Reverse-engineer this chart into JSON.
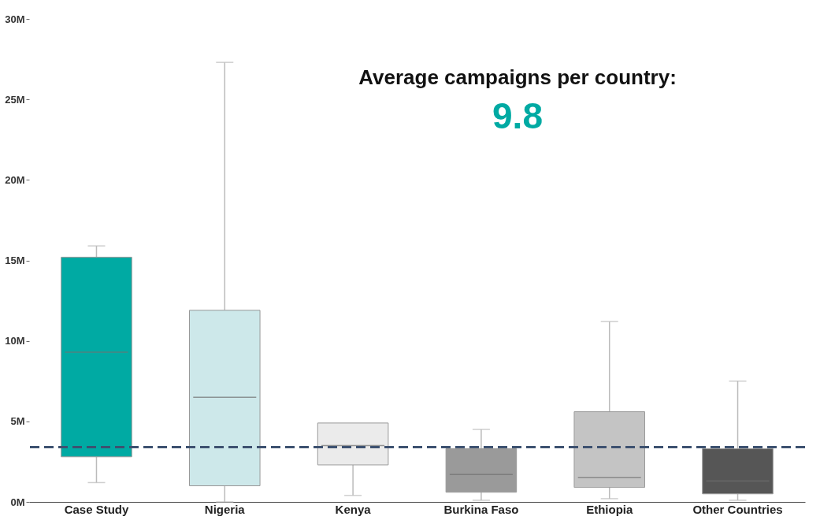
{
  "chart_data": {
    "type": "box",
    "categories": [
      "Case Study",
      "Nigeria",
      "Kenya",
      "Burkina Faso",
      "Ethiopia",
      "Other Countries"
    ],
    "boxes": [
      {
        "low": 1.2,
        "q1": 2.8,
        "median": 9.3,
        "q3": 15.2,
        "high": 15.9
      },
      {
        "low": 0,
        "q1": 1.0,
        "median": 6.5,
        "q3": 11.9,
        "high": 27.3
      },
      {
        "low": 0.4,
        "q1": 2.3,
        "median": 3.5,
        "q3": 4.9,
        "high": 4.9
      },
      {
        "low": 0.1,
        "q1": 0.6,
        "median": 1.7,
        "q3": 3.3,
        "high": 4.5
      },
      {
        "low": 0.2,
        "q1": 0.9,
        "median": 1.5,
        "q3": 5.6,
        "high": 11.2
      },
      {
        "low": 0.1,
        "q1": 0.5,
        "median": 1.3,
        "q3": 3.3,
        "high": 7.5
      }
    ],
    "colors": [
      "#00aaa3",
      "#cde8ea",
      "#ebebeb",
      "#9a9a9a",
      "#c4c4c4",
      "#565656"
    ],
    "ylim": [
      0,
      30
    ],
    "yticks": [
      {
        "value": 0,
        "label": "0M"
      },
      {
        "value": 5,
        "label": "5M"
      },
      {
        "value": 10,
        "label": "10M"
      },
      {
        "value": 15,
        "label": "15M"
      },
      {
        "value": 20,
        "label": "20M"
      },
      {
        "value": 25,
        "label": "25M"
      },
      {
        "value": 30,
        "label": "30M"
      }
    ],
    "ref_lines": [
      {
        "axis": "y",
        "value": 3.4,
        "color": "#3d5170",
        "line_style": "dashed"
      }
    ],
    "annotations": [
      "Average campaigns per country:",
      "9.8"
    ],
    "grid": false
  }
}
